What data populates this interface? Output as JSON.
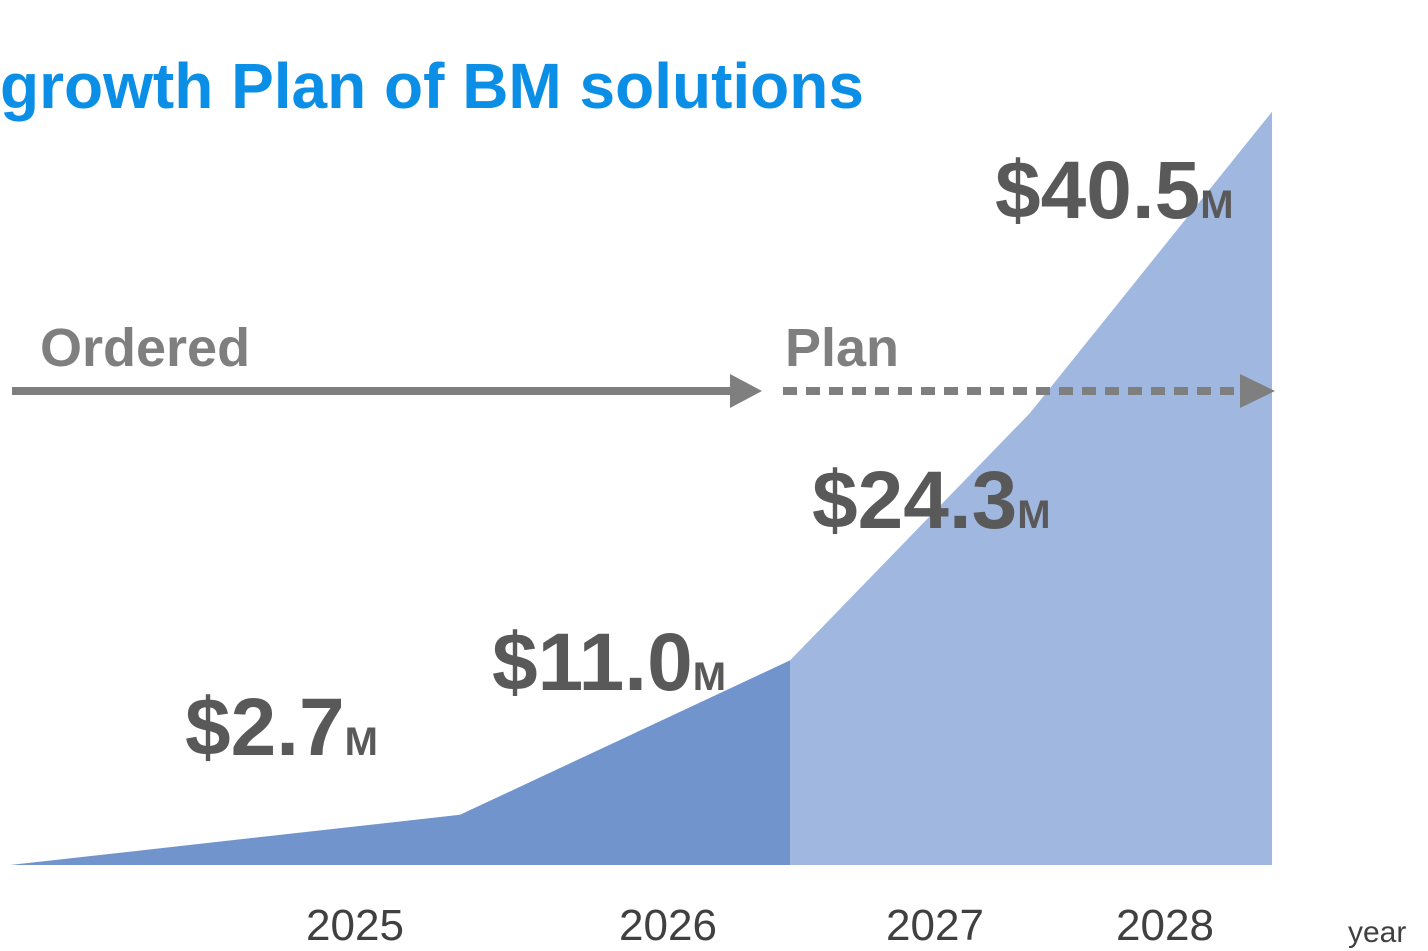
{
  "chart_data": {
    "type": "area",
    "title": "growth Plan of BM solutions",
    "categories": [
      "2025",
      "2026",
      "2027",
      "2028"
    ],
    "values": [
      2.7,
      11.0,
      24.3,
      40.5
    ],
    "value_labels": [
      "$2.7M",
      "$11.0M",
      "$24.3M",
      "$40.5M"
    ],
    "x_label": "year",
    "segments": [
      {
        "label": "Ordered",
        "color": "#7294cc"
      },
      {
        "label": "Plan",
        "color": "#a0b7df"
      }
    ]
  }
}
